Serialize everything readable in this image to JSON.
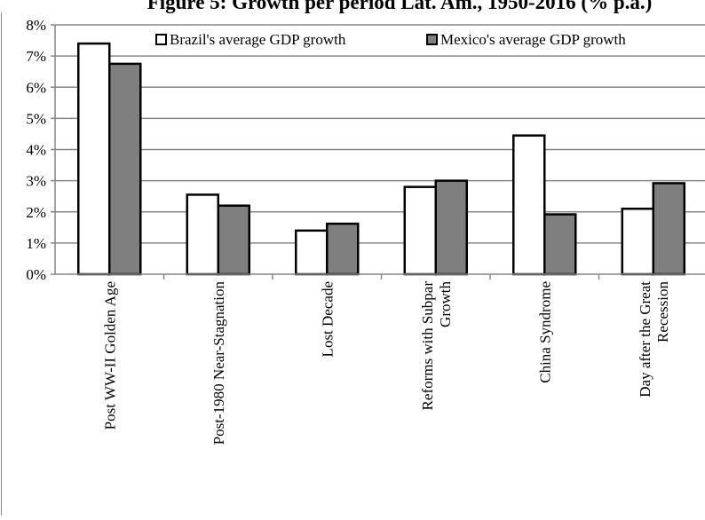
{
  "chart_data": {
    "type": "bar",
    "title": "Figure 5: Growth per period Lat. Am., 1950-2016 (% p.a.)",
    "categories": [
      "Post WW-II Golden Age",
      "Post-1980 Near-Stagnation",
      "Lost Decade",
      "Reforms with Subpar Growth",
      "China Syndrome",
      "Day after the Great Recession"
    ],
    "category_lines": [
      [
        "Post WW-II Golden Age"
      ],
      [
        "Post-1980 Near-Stagnation"
      ],
      [
        "Lost Decade"
      ],
      [
        "Reforms with Subpar",
        "Growth"
      ],
      [
        "China Syndrome"
      ],
      [
        "Day after the Great",
        "Recession"
      ]
    ],
    "series": [
      {
        "name": "Brazil's average GDP growth",
        "values": [
          7.4,
          2.55,
          1.4,
          2.8,
          4.45,
          2.1
        ],
        "color": "#ffffff"
      },
      {
        "name": "Mexico's average GDP growth",
        "values": [
          6.75,
          2.2,
          1.62,
          3.0,
          1.92,
          2.92
        ],
        "color": "#7f7f7f"
      }
    ],
    "y_ticks": [
      "0%",
      "1%",
      "2%",
      "3%",
      "4%",
      "5%",
      "6%",
      "7%",
      "8%"
    ],
    "ylim": [
      0,
      8
    ],
    "y_unit": "%",
    "grid": true,
    "legend_position": "top-right",
    "xlabel": "",
    "ylabel": ""
  }
}
